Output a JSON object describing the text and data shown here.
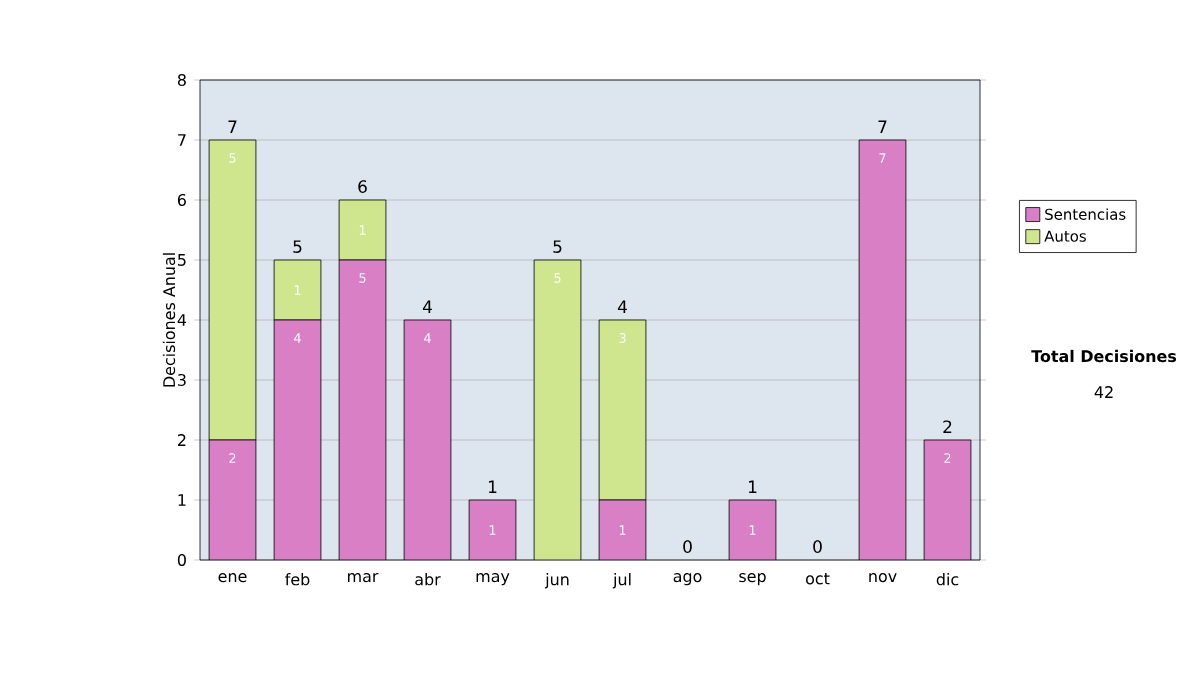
{
  "chart_data": {
    "type": "bar",
    "stacked": true,
    "ylabel": "Decisiones Anual",
    "categories": [
      "ene",
      "feb",
      "mar",
      "abr",
      "may",
      "jun",
      "jul",
      "ago",
      "sep",
      "oct",
      "nov",
      "dic"
    ],
    "series": [
      {
        "name": "Sentencias",
        "color": "#d97fc6",
        "values": [
          2,
          4,
          5,
          4,
          1,
          0,
          1,
          0,
          1,
          0,
          7,
          2
        ],
        "value_labels": [
          "2",
          "4",
          "5",
          "4",
          "1",
          null,
          "1",
          null,
          "1",
          null,
          "7",
          "2"
        ]
      },
      {
        "name": "Autos",
        "color": "#cfe68f",
        "values": [
          5,
          1,
          1,
          0,
          0,
          5,
          3,
          0,
          0,
          0,
          0,
          0
        ],
        "value_labels": [
          "5",
          "1",
          "1",
          null,
          null,
          "5",
          "3",
          null,
          null,
          null,
          null,
          null
        ]
      }
    ],
    "totals": [
      "7",
      "5",
      "6",
      "4",
      "1",
      "5",
      "4",
      "0",
      "1",
      "0",
      "7",
      "2"
    ],
    "ylim": [
      0,
      8
    ],
    "yticks": [
      0,
      1,
      2,
      3,
      4,
      5,
      6,
      7,
      8
    ],
    "grid": "y",
    "legend": "right",
    "annotations": [
      "Total Decisiones",
      "42"
    ]
  }
}
